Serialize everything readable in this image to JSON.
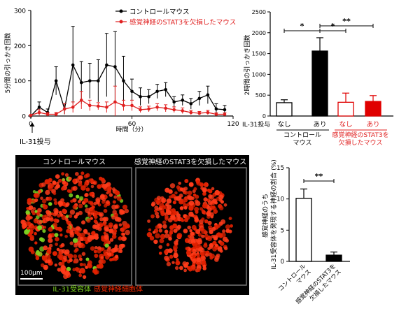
{
  "chart_data": [
    {
      "type": "line",
      "ylabel": "5分間の引っかき回数",
      "xlabel": "時間（分）",
      "xlim": [
        0,
        120
      ],
      "ylim": [
        0,
        300
      ],
      "yticks": [
        0,
        100,
        200,
        300
      ],
      "xticks": [
        0,
        60,
        120
      ],
      "annotation": "IL-31投与",
      "series": [
        {
          "name": "コントロールマウス",
          "color": "#000000",
          "x": [
            0,
            5,
            10,
            15,
            20,
            25,
            30,
            35,
            40,
            45,
            50,
            55,
            60,
            65,
            70,
            75,
            80,
            85,
            90,
            95,
            100,
            105,
            110,
            115
          ],
          "y": [
            0,
            25,
            10,
            100,
            20,
            145,
            95,
            100,
            100,
            145,
            140,
            100,
            70,
            55,
            55,
            70,
            75,
            40,
            45,
            35,
            50,
            60,
            20,
            18
          ],
          "err": [
            0,
            15,
            10,
            40,
            15,
            110,
            60,
            50,
            60,
            90,
            100,
            70,
            35,
            25,
            20,
            20,
            20,
            15,
            15,
            15,
            20,
            25,
            15,
            12
          ]
        },
        {
          "name": "感覚神経のSTAT3を欠損したマウス",
          "color": "#e02020",
          "x": [
            0,
            5,
            10,
            15,
            20,
            25,
            30,
            35,
            40,
            45,
            50,
            55,
            60,
            65,
            70,
            75,
            80,
            85,
            90,
            95,
            100,
            105,
            110,
            115
          ],
          "y": [
            2,
            10,
            5,
            5,
            20,
            25,
            45,
            30,
            28,
            25,
            40,
            30,
            30,
            18,
            20,
            25,
            22,
            18,
            15,
            10,
            8,
            10,
            5,
            5
          ],
          "err": [
            2,
            8,
            5,
            5,
            15,
            15,
            25,
            15,
            10,
            15,
            45,
            15,
            15,
            8,
            8,
            10,
            10,
            8,
            8,
            6,
            5,
            6,
            4,
            4
          ]
        }
      ]
    },
    {
      "type": "bar",
      "ylabel": "2時間の引っかき回数",
      "ylim": [
        0,
        2500
      ],
      "yticks": [
        0,
        500,
        1000,
        1500,
        2000,
        2500
      ],
      "row_label": "IL-31投与",
      "categories": [
        "なし",
        "あり",
        "なし",
        "あり"
      ],
      "values": [
        320,
        1560,
        330,
        350
      ],
      "errors": [
        70,
        320,
        220,
        140
      ],
      "fill": [
        "#ffffff",
        "#000000",
        "#ffffff",
        "#e00000"
      ],
      "edge": [
        "#000000",
        "#000000",
        "#e00000",
        "#e00000"
      ],
      "groups": [
        {
          "label": "コントロール\nマウス",
          "color": "#000000"
        },
        {
          "label": "感覚神経のSTAT3を\n欠損したマウス",
          "color": "#e02020"
        }
      ],
      "significance": [
        "*",
        "*",
        "**"
      ]
    },
    {
      "type": "bar",
      "ylabel": "感覚神経のうち\nIL-31受容体を発現する神経の割合 (%)",
      "ylim": [
        0,
        15
      ],
      "yticks": [
        0,
        5,
        10,
        15
      ],
      "categories": [
        "コントロール\nマウス",
        "感覚神経のSTAT3を\n欠損したマウス"
      ],
      "values": [
        10.1,
        1.0
      ],
      "errors": [
        1.5,
        0.5
      ],
      "fill": [
        "#ffffff",
        "#000000"
      ],
      "significance": [
        "**"
      ]
    }
  ],
  "micrograph": {
    "panel_left": "コントロールマウス",
    "panel_right": "感覚神経のSTAT3を欠損したマウス",
    "scale_bar": "100μm",
    "legend_green": "IL-31受容体",
    "legend_red": "感覚神経細胞体",
    "green_color": "#7ed321",
    "red_color": "#e02000"
  }
}
